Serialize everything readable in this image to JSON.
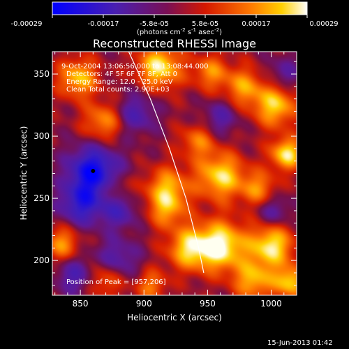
{
  "colorbar": {
    "tick_labels": [
      "-0.00029",
      "-0.00017",
      "-5.8e-05",
      "5.8e-05",
      "0.00017",
      "0.00029"
    ],
    "units_prefix": "(photons cm",
    "units_exp1": "-2",
    "units_mid": " s",
    "units_exp2": "-1",
    "units_mid2": " asec",
    "units_exp3": "-2",
    "units_suffix": ")"
  },
  "plot": {
    "title": "Reconstructed RHESSI Image",
    "annotations": [
      "9-Oct-2004 13:06:56.000 to 13:08:44.000",
      "Detectors: 4F 5F 6F 7F 8F, Att 0",
      "Energy Range: 12.0 - 25.0 keV",
      "Clean    Total counts: 2.90E+03"
    ],
    "peak_label": "Position of Peak = [957,206]",
    "footer_date": "15-Jun-2013 01:42"
  },
  "chart_data": {
    "type": "heatmap",
    "title": "Reconstructed RHESSI Image",
    "xlabel": "Heliocentric X (arcsec)",
    "ylabel": "Heliocentric Y (arcsec)",
    "xlim": [
      828,
      1020
    ],
    "ylim": [
      172,
      368
    ],
    "xticks": [
      850,
      900,
      950,
      1000
    ],
    "yticks": [
      200,
      250,
      300,
      350
    ],
    "color_range": [
      -0.00029,
      0.00029
    ],
    "colormap": "blue-purple-red-yellow-white",
    "peak": [
      957,
      206
    ],
    "blobs": [
      {
        "x": 912,
        "y": 356,
        "amp": 0.9,
        "s": 12
      },
      {
        "x": 848,
        "y": 347,
        "amp": 0.75,
        "s": 11
      },
      {
        "x": 952,
        "y": 352,
        "amp": 0.55,
        "s": 10
      },
      {
        "x": 1003,
        "y": 325,
        "amp": 0.8,
        "s": 12
      },
      {
        "x": 978,
        "y": 340,
        "amp": 0.6,
        "s": 11
      },
      {
        "x": 868,
        "y": 312,
        "amp": 0.6,
        "s": 11
      },
      {
        "x": 942,
        "y": 296,
        "amp": 0.5,
        "s": 10
      },
      {
        "x": 960,
        "y": 268,
        "amp": 0.85,
        "s": 13
      },
      {
        "x": 918,
        "y": 258,
        "amp": 0.7,
        "s": 12
      },
      {
        "x": 1012,
        "y": 286,
        "amp": 0.9,
        "s": 9
      },
      {
        "x": 990,
        "y": 258,
        "amp": 0.55,
        "s": 10
      },
      {
        "x": 1000,
        "y": 212,
        "amp": 0.9,
        "s": 12
      },
      {
        "x": 960,
        "y": 212,
        "amp": 1.0,
        "s": 14
      },
      {
        "x": 935,
        "y": 210,
        "amp": 0.75,
        "s": 12
      },
      {
        "x": 918,
        "y": 240,
        "amp": 0.5,
        "s": 10
      },
      {
        "x": 986,
        "y": 184,
        "amp": 0.7,
        "s": 11
      },
      {
        "x": 1015,
        "y": 183,
        "amp": 0.8,
        "s": 9
      },
      {
        "x": 835,
        "y": 214,
        "amp": 0.6,
        "s": 10
      },
      {
        "x": 870,
        "y": 186,
        "amp": 0.55,
        "s": 10
      },
      {
        "x": 905,
        "y": 180,
        "amp": 0.5,
        "s": 9
      },
      {
        "x": 878,
        "y": 258,
        "amp": 0.35,
        "s": 8
      },
      {
        "x": 860,
        "y": 272,
        "amp": -1.0,
        "s": 14
      },
      {
        "x": 850,
        "y": 245,
        "amp": -0.7,
        "s": 12
      },
      {
        "x": 880,
        "y": 240,
        "amp": -0.5,
        "s": 10
      },
      {
        "x": 893,
        "y": 318,
        "amp": -0.5,
        "s": 11
      },
      {
        "x": 960,
        "y": 315,
        "amp": -0.4,
        "s": 10
      },
      {
        "x": 878,
        "y": 200,
        "amp": -0.5,
        "s": 12
      },
      {
        "x": 845,
        "y": 188,
        "amp": -0.5,
        "s": 10
      },
      {
        "x": 1010,
        "y": 350,
        "amp": -0.35,
        "s": 10
      },
      {
        "x": 1002,
        "y": 240,
        "amp": -0.4,
        "s": 9
      }
    ],
    "limb_points": [
      [
        888,
        368
      ],
      [
        905,
        330
      ],
      [
        920,
        290
      ],
      [
        933,
        250
      ],
      [
        943,
        210
      ],
      [
        947,
        190
      ]
    ],
    "style": {
      "bg": "#000000",
      "axis_color": "#ffffff",
      "limb_color": "#ffffff",
      "peak_marker_color": "#000000"
    }
  }
}
